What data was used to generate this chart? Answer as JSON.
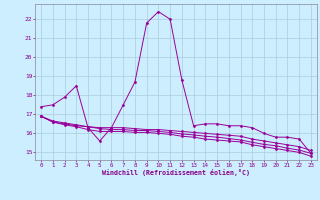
{
  "xlabel": "Windchill (Refroidissement éolien,°C)",
  "bg_color": "#cceeff",
  "grid_color": "#aaccdd",
  "line_color": "#990099",
  "text_color": "#880088",
  "x_ticks": [
    0,
    1,
    2,
    3,
    4,
    5,
    6,
    7,
    8,
    9,
    10,
    11,
    12,
    13,
    14,
    15,
    16,
    17,
    18,
    19,
    20,
    21,
    22,
    23
  ],
  "y_ticks": [
    15,
    16,
    17,
    18,
    19,
    20,
    21,
    22
  ],
  "xlim": [
    -0.5,
    23.5
  ],
  "ylim": [
    14.6,
    22.8
  ],
  "lines": [
    [
      17.4,
      17.5,
      17.9,
      18.5,
      16.3,
      15.6,
      16.3,
      17.5,
      18.7,
      21.8,
      22.4,
      22.0,
      18.8,
      16.4,
      16.5,
      16.5,
      16.4,
      16.4,
      16.3,
      16.0,
      15.8,
      15.8,
      15.7,
      14.95
    ],
    [
      16.9,
      16.6,
      16.5,
      16.4,
      16.35,
      16.3,
      16.3,
      16.3,
      16.25,
      16.2,
      16.2,
      16.15,
      16.1,
      16.05,
      16.0,
      15.95,
      15.9,
      15.85,
      15.7,
      15.6,
      15.5,
      15.4,
      15.3,
      15.1
    ],
    [
      16.9,
      16.6,
      16.45,
      16.35,
      16.2,
      16.1,
      16.1,
      16.1,
      16.05,
      16.05,
      16.0,
      15.95,
      15.85,
      15.8,
      15.7,
      15.65,
      15.6,
      15.55,
      15.4,
      15.3,
      15.2,
      15.1,
      15.0,
      14.8
    ],
    [
      16.9,
      16.65,
      16.55,
      16.45,
      16.35,
      16.25,
      16.2,
      16.2,
      16.15,
      16.15,
      16.1,
      16.05,
      15.97,
      15.92,
      15.85,
      15.8,
      15.73,
      15.65,
      15.53,
      15.42,
      15.35,
      15.22,
      15.12,
      14.95
    ]
  ]
}
